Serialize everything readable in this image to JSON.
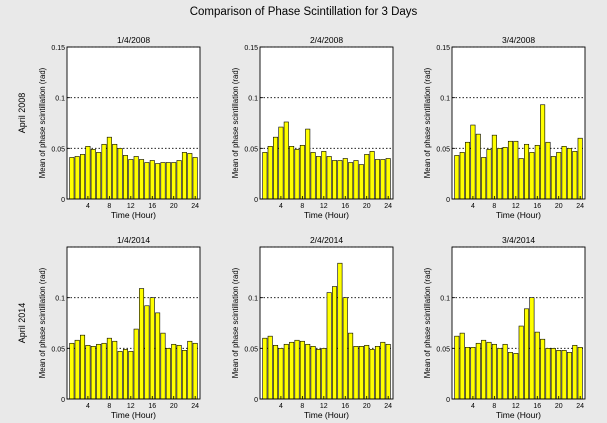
{
  "figure": {
    "title": "Comparison of Phase Scintillation for 3 Days",
    "row_labels": [
      "April 2008",
      "April 2014"
    ]
  },
  "style": {
    "background": "#e9e9e9",
    "bar_fill": "#ffff00",
    "bar_stroke": "#000000",
    "axes_bg": "#ffffff"
  },
  "chart_data": [
    {
      "type": "bar",
      "title": "1/4/2008",
      "xlabel": "Time (Hour)",
      "ylabel": "Mean of phase scintillation (rad)",
      "categories": [
        1,
        2,
        3,
        4,
        5,
        6,
        7,
        8,
        9,
        10,
        11,
        12,
        13,
        14,
        15,
        16,
        17,
        18,
        19,
        20,
        21,
        22,
        23,
        24
      ],
      "values": [
        0.041,
        0.042,
        0.044,
        0.052,
        0.049,
        0.046,
        0.054,
        0.061,
        0.054,
        0.05,
        0.043,
        0.039,
        0.042,
        0.039,
        0.036,
        0.038,
        0.035,
        0.036,
        0.036,
        0.036,
        0.038,
        0.046,
        0.045,
        0.041
      ],
      "ylim": [
        0,
        0.15
      ],
      "yticks": [
        "0",
        "0.05",
        "0.1",
        "0.15"
      ],
      "xticks": [
        "4",
        "8",
        "12",
        "16",
        "20",
        "24"
      ],
      "grid_lines": [
        0.05,
        0.1,
        0.15
      ]
    },
    {
      "type": "bar",
      "title": "2/4/2008",
      "xlabel": "Time (Hour)",
      "ylabel": "Mean of phase scintillation (rad)",
      "categories": [
        1,
        2,
        3,
        4,
        5,
        6,
        7,
        8,
        9,
        10,
        11,
        12,
        13,
        14,
        15,
        16,
        17,
        18,
        19,
        20,
        21,
        22,
        23,
        24
      ],
      "values": [
        0.046,
        0.052,
        0.061,
        0.071,
        0.076,
        0.052,
        0.049,
        0.053,
        0.069,
        0.046,
        0.042,
        0.047,
        0.042,
        0.038,
        0.038,
        0.04,
        0.036,
        0.038,
        0.034,
        0.044,
        0.047,
        0.039,
        0.039,
        0.04
      ],
      "ylim": [
        0,
        0.15
      ],
      "yticks": [
        "0",
        "0.05",
        "0.1",
        "0.15"
      ],
      "xticks": [
        "4",
        "8",
        "12",
        "16",
        "20",
        "24"
      ],
      "grid_lines": [
        0.05,
        0.1,
        0.15
      ]
    },
    {
      "type": "bar",
      "title": "3/4/2008",
      "xlabel": "Time (Hour)",
      "ylabel": "Mean of phase scintillation (rad)",
      "categories": [
        1,
        2,
        3,
        4,
        5,
        6,
        7,
        8,
        9,
        10,
        11,
        12,
        13,
        14,
        15,
        16,
        17,
        18,
        19,
        20,
        21,
        22,
        23,
        24
      ],
      "values": [
        0.043,
        0.046,
        0.056,
        0.073,
        0.064,
        0.041,
        0.049,
        0.063,
        0.05,
        0.051,
        0.057,
        0.057,
        0.04,
        0.054,
        0.046,
        0.053,
        0.093,
        0.056,
        0.042,
        0.046,
        0.052,
        0.05,
        0.047,
        0.06
      ],
      "ylim": [
        0,
        0.15
      ],
      "yticks": [
        "0",
        "0.05",
        "0.1",
        "0.15"
      ],
      "xticks": [
        "4",
        "8",
        "12",
        "16",
        "20",
        "24"
      ],
      "grid_lines": [
        0.05,
        0.1,
        0.15
      ]
    },
    {
      "type": "bar",
      "title": "1/4/2014",
      "xlabel": "Time (Hour)",
      "ylabel": "Mean of phase scintillation (rad)",
      "categories": [
        1,
        2,
        3,
        4,
        5,
        6,
        7,
        8,
        9,
        10,
        11,
        12,
        13,
        14,
        15,
        16,
        17,
        18,
        19,
        20,
        21,
        22,
        23,
        24
      ],
      "values": [
        0.055,
        0.058,
        0.063,
        0.053,
        0.052,
        0.054,
        0.055,
        0.06,
        0.057,
        0.047,
        0.049,
        0.047,
        0.069,
        0.109,
        0.092,
        0.1,
        0.085,
        0.065,
        0.05,
        0.054,
        0.053,
        0.048,
        0.057,
        0.055
      ],
      "ylim": [
        0,
        0.15
      ],
      "yticks": [
        "0",
        "0.05",
        "0.1"
      ],
      "xticks": [
        "4",
        "8",
        "12",
        "16",
        "20",
        "24"
      ],
      "grid_lines": [
        0.05,
        0.1,
        0.15
      ]
    },
    {
      "type": "bar",
      "title": "2/4/2014",
      "xlabel": "Time (Hour)",
      "ylabel": "Mean of phase scintillation (rad)",
      "categories": [
        1,
        2,
        3,
        4,
        5,
        6,
        7,
        8,
        9,
        10,
        11,
        12,
        13,
        14,
        15,
        16,
        17,
        18,
        19,
        20,
        21,
        22,
        23,
        24
      ],
      "values": [
        0.06,
        0.062,
        0.053,
        0.05,
        0.054,
        0.056,
        0.058,
        0.057,
        0.054,
        0.052,
        0.049,
        0.05,
        0.105,
        0.111,
        0.134,
        0.1,
        0.065,
        0.052,
        0.052,
        0.053,
        0.049,
        0.052,
        0.056,
        0.054
      ],
      "ylim": [
        0,
        0.15
      ],
      "yticks": [
        "0",
        "0.05",
        "0.1"
      ],
      "xticks": [
        "4",
        "8",
        "12",
        "16",
        "20",
        "24"
      ],
      "grid_lines": [
        0.05,
        0.1,
        0.15
      ]
    },
    {
      "type": "bar",
      "title": "3/4/2014",
      "xlabel": "Time (Hour)",
      "ylabel": "Mean of phase scintillation (rad)",
      "categories": [
        1,
        2,
        3,
        4,
        5,
        6,
        7,
        8,
        9,
        10,
        11,
        12,
        13,
        14,
        15,
        16,
        17,
        18,
        19,
        20,
        21,
        22,
        23,
        24
      ],
      "values": [
        0.062,
        0.065,
        0.051,
        0.051,
        0.055,
        0.058,
        0.056,
        0.054,
        0.05,
        0.054,
        0.046,
        0.045,
        0.072,
        0.089,
        0.1,
        0.066,
        0.059,
        0.05,
        0.05,
        0.048,
        0.048,
        0.046,
        0.053,
        0.051
      ],
      "ylim": [
        0,
        0.15
      ],
      "yticks": [
        "0",
        "0.05",
        "0.1"
      ],
      "xticks": [
        "4",
        "8",
        "12",
        "16",
        "20",
        "24"
      ],
      "grid_lines": [
        0.05,
        0.1,
        0.15
      ]
    }
  ]
}
